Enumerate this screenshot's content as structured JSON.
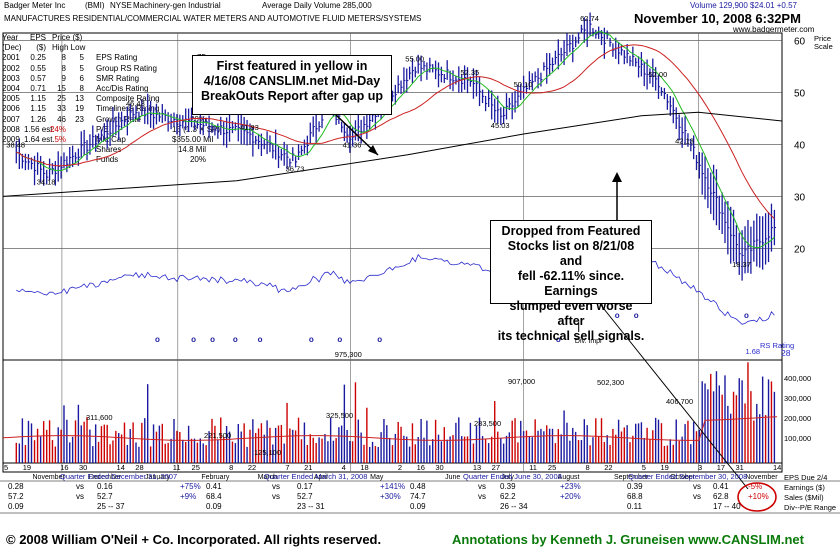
{
  "header": {
    "company": "Badger Meter Inc",
    "ticker": "(BMI)",
    "exchange": "NYSE",
    "industry": "Machinery-gen Industrial",
    "avg_volume": "Average Daily Volume 285,000",
    "description": "MANUFACTURES RESIDENTIAL/COMMERCIAL WATER METERS AND AUTOMOTIVE FLUID METERS/SYSTEMS",
    "quote": "Volume 129,900 $24.01 +0.57",
    "date": "November 10, 2008 6:32PM",
    "website": "www.badgermeter.com",
    "price_scale_label": "Price Scale"
  },
  "fundamentals": {
    "head1": [
      "Year",
      "EPS",
      "Price ($)"
    ],
    "head2": [
      "(Dec)",
      "($)",
      "High Low"
    ],
    "rows": [
      {
        "year": "2001",
        "eps": "0.25",
        "high": "8",
        "low": "5",
        "label": "EPS Rating",
        "value": "75"
      },
      {
        "year": "2002",
        "eps": "0.55",
        "high": "8",
        "low": "5",
        "label": "Group RS Rating",
        "value": "D+"
      },
      {
        "year": "2003",
        "eps": "0.57",
        "high": "9",
        "low": "6",
        "label": "SMR Rating",
        "value": "A"
      },
      {
        "year": "2004",
        "eps": "0.71",
        "high": "15",
        "low": "8",
        "label": "Acc/Dis Rating",
        "value": "D"
      },
      {
        "year": "2005",
        "eps": "1.15",
        "high": "25",
        "low": "13",
        "label": "Composite Rating",
        "value": "40"
      },
      {
        "year": "2006",
        "eps": "1.15",
        "high": "33",
        "low": "19",
        "label": "Timeliness Rating",
        "value": "C"
      },
      {
        "year": "2007",
        "eps": "1.26",
        "high": "46",
        "low": "23",
        "label": "Growth Rate",
        "value": "20%"
      },
      {
        "year": "2008",
        "eps": "1.56 est.",
        "high": "24%",
        "low": "",
        "label": "P/E",
        "value": "15 (1.3 X SP)"
      },
      {
        "year": "2009",
        "eps": "1.64 est.",
        "high": "5%",
        "low": "",
        "label": "Mkt Cap",
        "value": "$355.00 Mil"
      },
      {
        "year": "",
        "eps": "",
        "high": "",
        "low": "",
        "label": "Shares",
        "value": "14.8 Mil"
      },
      {
        "year": "",
        "eps": "",
        "high": "",
        "low": "",
        "label": "Funds",
        "value": "20%"
      }
    ]
  },
  "annotations": {
    "box1": [
      "First featured in yellow in",
      "4/16/08 CANSLIM.net Mid-Day",
      "BreakOuts Report after gap up"
    ],
    "box2": [
      "Dropped from Featured",
      "Stocks list on 8/21/08 and",
      "fell -62.11% since.  Earnings",
      "slumped even worse after",
      "its technical sell signals."
    ],
    "div_label": "Div. Impr",
    "rs_label": "RS Rating",
    "rs_value": "28"
  },
  "quarterly": {
    "q1": {
      "title": "Quarter Ended December 31, 2007",
      "row1": [
        "0.28",
        "vs",
        "0.16",
        "+75%"
      ],
      "row2": [
        "57.2",
        "vs",
        "52.7",
        "+9%"
      ],
      "row3": [
        "0.09",
        "",
        "25 -- 37",
        ""
      ]
    },
    "q2": {
      "title": "Quarter Ended March 31, 2008",
      "row1": [
        "0.41",
        "vs",
        "0.17",
        "+141%"
      ],
      "row2": [
        "68.4",
        "vs",
        "52.7",
        "+30%"
      ],
      "row3": [
        "0.09",
        "",
        "23 -- 31",
        ""
      ]
    },
    "q3": {
      "title": "Quarter Ended June 30, 2008",
      "row1": [
        "0.48",
        "vs",
        "0.39",
        "+23%"
      ],
      "row2": [
        "74.7",
        "vs",
        "62.2",
        "+20%"
      ],
      "row3": [
        "0.09",
        "",
        "26 -- 34",
        ""
      ]
    },
    "q4": {
      "title": "Quarter Ended September 30, 2008",
      "row1": [
        "0.39",
        "vs",
        "0.41",
        "-5%"
      ],
      "row2": [
        "68.8",
        "vs",
        "62.8",
        "+10%"
      ],
      "row3": [
        "0.11",
        "",
        "17 -- 40",
        ""
      ]
    },
    "legend": [
      "EPS Due 2/4",
      "Earnings ($)",
      "Sales ($Mil)",
      "Div--P/E Range"
    ]
  },
  "footer": {
    "copyright": "© 2008 William O'Neil + Co. Incorporated.  All rights reserved.",
    "credit": "Annotations by Kenneth J. Gruneisen  www.CANSLIM.net"
  },
  "colors": {
    "price_bar": "#1a1aa0",
    "ma50": "#22bb22",
    "ma200": "#cc2222",
    "ma_long": "#000000",
    "rs_line": "#2a2acc",
    "volume_avg": "#cc2222",
    "div_marker": "#1a1aa0",
    "credit_text": "#0a7a0a",
    "highlight": "#cc0000"
  },
  "chart_data": {
    "type": "bar",
    "ylim": [
      17,
      70
    ],
    "y_ticks": [
      20,
      30,
      40,
      50,
      60
    ],
    "x_ticks": [
      "5",
      "19",
      "November",
      "16",
      "30",
      "December",
      "14",
      "28",
      "January",
      "11",
      "25",
      "February",
      "8",
      "22",
      "March",
      "7",
      "21",
      "April",
      "4",
      "18",
      "May",
      "2",
      "16",
      "30",
      "June",
      "13",
      "27",
      "July",
      "11",
      "25",
      "August",
      "8",
      "22",
      "September",
      "5",
      "19",
      "October",
      "3",
      "17",
      "31",
      "November",
      "14"
    ],
    "price_labels": [
      {
        "text": "38.48",
        "price": 38.48
      },
      {
        "text": "34.18",
        "price": 34.18
      },
      {
        "text": "46.43",
        "price": 46.43
      },
      {
        "text": "41.83",
        "price": 41.83
      },
      {
        "text": "36.73",
        "price": 36.73
      },
      {
        "text": "47.40",
        "price": 47.4
      },
      {
        "text": "41.36",
        "price": 41.36
      },
      {
        "text": "55.00",
        "price": 55.0
      },
      {
        "text": "52.35",
        "price": 52.35
      },
      {
        "text": "45.03",
        "price": 45.03
      },
      {
        "text": "50.10",
        "price": 50.1
      },
      {
        "text": "62.74",
        "price": 62.74
      },
      {
        "text": "52.00",
        "price": 52.0
      },
      {
        "text": "42.13",
        "price": 42.13
      },
      {
        "text": "18.37",
        "price": 18.37
      }
    ],
    "rs_low_label": "1.68",
    "rs_high_label": "975,300",
    "volume_labels": [
      "311,600",
      "221,500",
      "125,100",
      "325,500",
      "283,500",
      "907,000",
      "502,300",
      "406,700"
    ],
    "volume_ticks": [
      "400,000",
      "300,000",
      "200,000",
      "100,000"
    ],
    "key_points": [
      {
        "date": "2007-10-08",
        "price": 38.48
      },
      {
        "date": "2007-10-24",
        "price": 34.18
      },
      {
        "date": "2007-12-10",
        "price": 46.43
      },
      {
        "date": "2008-02-08",
        "price": 41.83
      },
      {
        "date": "2008-03-03",
        "price": 36.73
      },
      {
        "date": "2008-03-20",
        "price": 47.4
      },
      {
        "date": "2008-04-02",
        "price": 41.36
      },
      {
        "date": "2008-05-05",
        "price": 55.0
      },
      {
        "date": "2008-06-03",
        "price": 52.35
      },
      {
        "date": "2008-06-19",
        "price": 45.03
      },
      {
        "date": "2008-07-01",
        "price": 50.1
      },
      {
        "date": "2008-08-05",
        "price": 62.74
      },
      {
        "date": "2008-09-10",
        "price": 52.0
      },
      {
        "date": "2008-09-24",
        "price": 42.13
      },
      {
        "date": "2008-10-24",
        "price": 18.37
      },
      {
        "date": "2008-11-10",
        "price": 24.01
      }
    ],
    "ma_200": [
      {
        "date": "2007-10-01",
        "price": 30.0
      },
      {
        "date": "2008-02-01",
        "price": 33.0
      },
      {
        "date": "2008-05-01",
        "price": 38.0
      },
      {
        "date": "2008-07-01",
        "price": 42.0
      },
      {
        "date": "2008-09-01",
        "price": 45.5
      },
      {
        "date": "2008-10-01",
        "price": 46.2
      },
      {
        "date": "2008-11-14",
        "price": 44.5
      }
    ]
  }
}
